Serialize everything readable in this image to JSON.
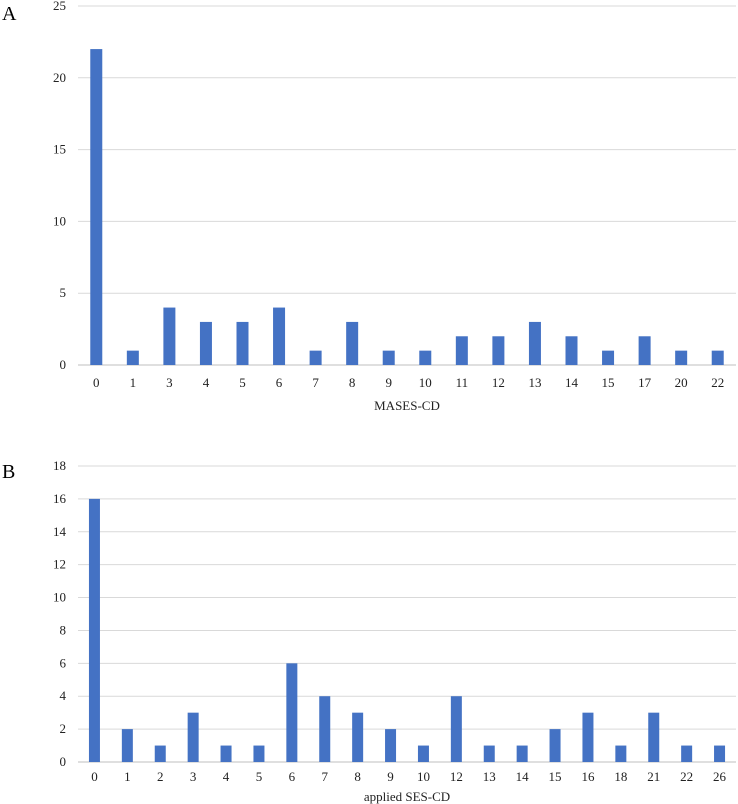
{
  "chart_data": [
    {
      "type": "bar",
      "panel_label": "A",
      "title": "",
      "xlabel": "MASES-CD",
      "ylabel": "",
      "ylim": [
        0,
        25
      ],
      "yticks": [
        0,
        5,
        10,
        15,
        20,
        25
      ],
      "grid": true,
      "legend": "none",
      "bar_color": "#4472c4",
      "categories": [
        "0",
        "1",
        "3",
        "4",
        "5",
        "6",
        "7",
        "8",
        "9",
        "10",
        "11",
        "12",
        "13",
        "14",
        "15",
        "17",
        "20",
        "22"
      ],
      "values": [
        22,
        1,
        4,
        3,
        3,
        4,
        1,
        3,
        1,
        1,
        2,
        2,
        3,
        2,
        1,
        2,
        1,
        1
      ]
    },
    {
      "type": "bar",
      "panel_label": "B",
      "title": "",
      "xlabel": "applied SES-CD",
      "ylabel": "",
      "ylim": [
        0,
        18
      ],
      "yticks": [
        0,
        2,
        4,
        6,
        8,
        10,
        12,
        14,
        16,
        18
      ],
      "grid": true,
      "legend": "none",
      "bar_color": "#4472c4",
      "categories": [
        "0",
        "1",
        "2",
        "3",
        "4",
        "5",
        "6",
        "7",
        "8",
        "9",
        "10",
        "12",
        "13",
        "14",
        "15",
        "16",
        "18",
        "21",
        "22",
        "26"
      ],
      "values": [
        16,
        2,
        1,
        3,
        1,
        1,
        6,
        4,
        3,
        2,
        1,
        4,
        1,
        1,
        2,
        3,
        1,
        3,
        1,
        1
      ]
    }
  ]
}
